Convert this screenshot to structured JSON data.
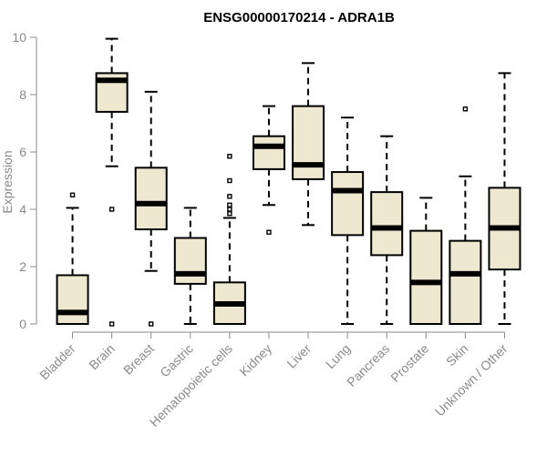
{
  "chart_data": {
    "type": "boxplot",
    "title": "ENSG00000170214 - ADRA1B",
    "xlabel": "",
    "ylabel": "Expression",
    "ylim": [
      0,
      10
    ],
    "yticks": [
      0,
      2,
      4,
      6,
      8,
      10
    ],
    "grid": false,
    "box_fill": "#efe8d0",
    "box_stroke": "#000000",
    "axis_color": "#8a8a8a",
    "categories": [
      "Bladder",
      "Brain",
      "Breast",
      "Gastric",
      "Hematopoietic cells",
      "Kidney",
      "Liver",
      "Lung",
      "Pancreas",
      "Prostate",
      "Skin",
      "Unknown / Other"
    ],
    "boxes": [
      {
        "whisker_low": 0.0,
        "q1": 0.0,
        "median": 0.4,
        "q3": 1.7,
        "whisker_high": 4.05,
        "outliers": [
          4.5
        ]
      },
      {
        "whisker_low": 5.5,
        "q1": 7.4,
        "median": 8.5,
        "q3": 8.75,
        "whisker_high": 9.95,
        "outliers": [
          4.0,
          0.0
        ]
      },
      {
        "whisker_low": 1.85,
        "q1": 3.3,
        "median": 4.2,
        "q3": 5.45,
        "whisker_high": 8.1,
        "outliers": [
          0.0
        ]
      },
      {
        "whisker_low": 0.0,
        "q1": 1.4,
        "median": 1.75,
        "q3": 3.0,
        "whisker_high": 4.05,
        "outliers": []
      },
      {
        "whisker_low": 0.0,
        "q1": 0.0,
        "median": 0.7,
        "q3": 1.45,
        "whisker_high": 3.7,
        "outliers": [
          3.85,
          4.0,
          4.15,
          4.45,
          5.0,
          5.85
        ]
      },
      {
        "whisker_low": 4.15,
        "q1": 5.4,
        "median": 6.2,
        "q3": 6.55,
        "whisker_high": 7.6,
        "outliers": [
          3.2
        ]
      },
      {
        "whisker_low": 3.45,
        "q1": 5.05,
        "median": 5.55,
        "q3": 7.6,
        "whisker_high": 9.1,
        "outliers": []
      },
      {
        "whisker_low": 0.0,
        "q1": 3.1,
        "median": 4.65,
        "q3": 5.3,
        "whisker_high": 7.2,
        "outliers": []
      },
      {
        "whisker_low": 0.0,
        "q1": 2.4,
        "median": 3.35,
        "q3": 4.6,
        "whisker_high": 6.55,
        "outliers": []
      },
      {
        "whisker_low": 0.0,
        "q1": 0.0,
        "median": 1.45,
        "q3": 3.25,
        "whisker_high": 4.4,
        "outliers": []
      },
      {
        "whisker_low": 0.0,
        "q1": 0.0,
        "median": 1.75,
        "q3": 2.9,
        "whisker_high": 5.15,
        "outliers": [
          7.5
        ]
      },
      {
        "whisker_low": 0.0,
        "q1": 1.9,
        "median": 3.35,
        "q3": 4.75,
        "whisker_high": 8.75,
        "outliers": []
      }
    ]
  }
}
